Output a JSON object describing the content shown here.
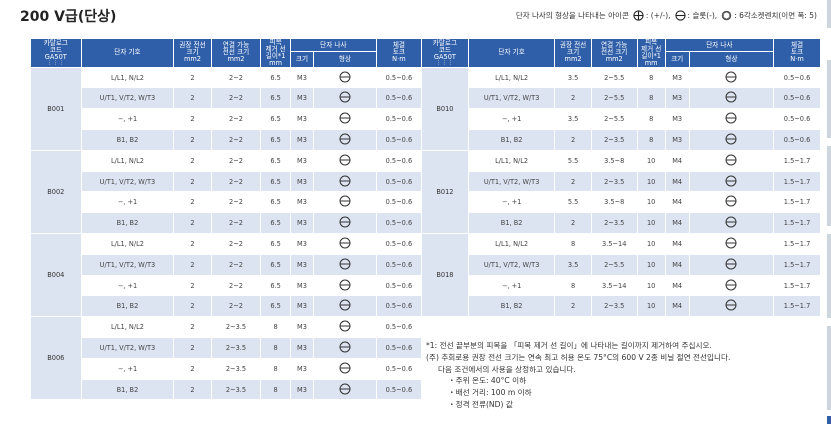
{
  "title": "200 V급(단상)",
  "legend": {
    "prefix": "단자 나사의 형상을 나타내는 아이콘",
    "items": [
      {
        "icon": "plus-minus-screw-icon",
        "label": ": (+/-),"
      },
      {
        "icon": "slotted-screw-icon",
        "label": ": 슬롯(-),"
      },
      {
        "icon": "hex-socket-icon",
        "label": ": 6각소켓렌치(이면 폭: 5)"
      }
    ]
  },
  "headers": {
    "catalog": [
      "카탈로그",
      "코드",
      "GA50T"
    ],
    "catalog_dots": "⋮⋮⋮",
    "terminal": "단자 기호",
    "rec_wire": [
      "권장 전선",
      "크기",
      "mm2"
    ],
    "applicable_wire": [
      "연결 가능",
      "전선 크기",
      "mm2"
    ],
    "strip": [
      "피복",
      "제거 선",
      "길이*1",
      "mm"
    ],
    "screw": "단자 나사",
    "size": "크기",
    "shape": "형상",
    "torque": [
      "체결",
      "토크",
      "N·m"
    ]
  },
  "left_groups": [
    {
      "code": "B001",
      "rows": [
        {
          "terminal": "L/L1, N/L2",
          "rec": "2",
          "app": "2~2",
          "strip": "6.5",
          "size": "M3",
          "torque": "0.5~0.6"
        },
        {
          "terminal": "U/T1, V/T2, W/T3",
          "rec": "2",
          "app": "2~2",
          "strip": "6.5",
          "size": "M3",
          "torque": "0.5~0.6"
        },
        {
          "terminal": "−, +1",
          "rec": "2",
          "app": "2~2",
          "strip": "6.5",
          "size": "M3",
          "torque": "0.5~0.6"
        },
        {
          "terminal": "B1, B2",
          "rec": "2",
          "app": "2~2",
          "strip": "6.5",
          "size": "M3",
          "torque": "0.5~0.6"
        }
      ]
    },
    {
      "code": "B002",
      "rows": [
        {
          "terminal": "L/L1, N/L2",
          "rec": "2",
          "app": "2~2",
          "strip": "6.5",
          "size": "M3",
          "torque": "0.5~0.6"
        },
        {
          "terminal": "U/T1, V/T2, W/T3",
          "rec": "2",
          "app": "2~2",
          "strip": "6.5",
          "size": "M3",
          "torque": "0.5~0.6"
        },
        {
          "terminal": "−, +1",
          "rec": "2",
          "app": "2~2",
          "strip": "6.5",
          "size": "M3",
          "torque": "0.5~0.6"
        },
        {
          "terminal": "B1, B2",
          "rec": "2",
          "app": "2~2",
          "strip": "6.5",
          "size": "M3",
          "torque": "0.5~0.6"
        }
      ]
    },
    {
      "code": "B004",
      "rows": [
        {
          "terminal": "L/L1, N/L2",
          "rec": "2",
          "app": "2~2",
          "strip": "6.5",
          "size": "M3",
          "torque": "0.5~0.6"
        },
        {
          "terminal": "U/T1, V/T2, W/T3",
          "rec": "2",
          "app": "2~2",
          "strip": "6.5",
          "size": "M3",
          "torque": "0.5~0.6"
        },
        {
          "terminal": "−, +1",
          "rec": "2",
          "app": "2~2",
          "strip": "6.5",
          "size": "M3",
          "torque": "0.5~0.6"
        },
        {
          "terminal": "B1, B2",
          "rec": "2",
          "app": "2~2",
          "strip": "6.5",
          "size": "M3",
          "torque": "0.5~0.6"
        }
      ]
    },
    {
      "code": "B006",
      "rows": [
        {
          "terminal": "L/L1, N/L2",
          "rec": "2",
          "app": "2~3.5",
          "strip": "8",
          "size": "M3",
          "torque": "0.5~0.6"
        },
        {
          "terminal": "U/T1, V/T2, W/T3",
          "rec": "2",
          "app": "2~3.5",
          "strip": "8",
          "size": "M3",
          "torque": "0.5~0.6"
        },
        {
          "terminal": "−, +1",
          "rec": "2",
          "app": "2~3.5",
          "strip": "8",
          "size": "M3",
          "torque": "0.5~0.6"
        },
        {
          "terminal": "B1, B2",
          "rec": "2",
          "app": "2~3.5",
          "strip": "8",
          "size": "M3",
          "torque": "0.5~0.6"
        }
      ]
    }
  ],
  "right_groups": [
    {
      "code": "B010",
      "rows": [
        {
          "terminal": "L/L1, N/L2",
          "rec": "3.5",
          "app": "2~5.5",
          "strip": "8",
          "size": "M3",
          "torque": "0.5~0.6"
        },
        {
          "terminal": "U/T1, V/T2, W/T3",
          "rec": "2",
          "app": "2~5.5",
          "strip": "8",
          "size": "M3",
          "torque": "0.5~0.6"
        },
        {
          "terminal": "−, +1",
          "rec": "3.5",
          "app": "2~5.5",
          "strip": "8",
          "size": "M3",
          "torque": "0.5~0.6"
        },
        {
          "terminal": "B1, B2",
          "rec": "2",
          "app": "2~3.5",
          "strip": "8",
          "size": "M3",
          "torque": "0.5~0.6"
        }
      ]
    },
    {
      "code": "B012",
      "rows": [
        {
          "terminal": "L/L1, N/L2",
          "rec": "5.5",
          "app": "3.5~8",
          "strip": "10",
          "size": "M4",
          "torque": "1.5~1.7"
        },
        {
          "terminal": "U/T1, V/T2, W/T3",
          "rec": "2",
          "app": "2~3.5",
          "strip": "10",
          "size": "M4",
          "torque": "1.5~1.7"
        },
        {
          "terminal": "−, +1",
          "rec": "5.5",
          "app": "3.5~8",
          "strip": "10",
          "size": "M4",
          "torque": "1.5~1.7"
        },
        {
          "terminal": "B1, B2",
          "rec": "2",
          "app": "2~3.5",
          "strip": "10",
          "size": "M4",
          "torque": "1.5~1.7"
        }
      ]
    },
    {
      "code": "B018",
      "rows": [
        {
          "terminal": "L/L1, N/L2",
          "rec": "8",
          "app": "3.5~14",
          "strip": "10",
          "size": "M4",
          "torque": "1.5~1.7"
        },
        {
          "terminal": "U/T1, V/T2, W/T3",
          "rec": "3.5",
          "app": "2~5.5",
          "strip": "10",
          "size": "M4",
          "torque": "1.5~1.7"
        },
        {
          "terminal": "−, +1",
          "rec": "8",
          "app": "3.5~14",
          "strip": "10",
          "size": "M4",
          "torque": "1.5~1.7"
        },
        {
          "terminal": "B1, B2",
          "rec": "2",
          "app": "2~3.5",
          "strip": "10",
          "size": "M4",
          "torque": "1.5~1.7"
        }
      ]
    }
  ],
  "notes": {
    "note1": "*1: 전선 끝부분의 피복을 「피복 제거 선 길이」에 나타내는 길이까지 제거하여 주십시오.",
    "note2": "(주) 추회로용 권장 전선 크기는 연속 최고 허용 온도 75°C의 600 V 2종 비닐 절연 전선입니다.",
    "note3": "다음 조건에서의 사용을 상정하고 있습니다.",
    "cond1": "・주위 온도: 40°C 이하",
    "cond2": "・배선 거리: 100 m 이하",
    "cond3": "・정격 전류(ND) 값"
  }
}
